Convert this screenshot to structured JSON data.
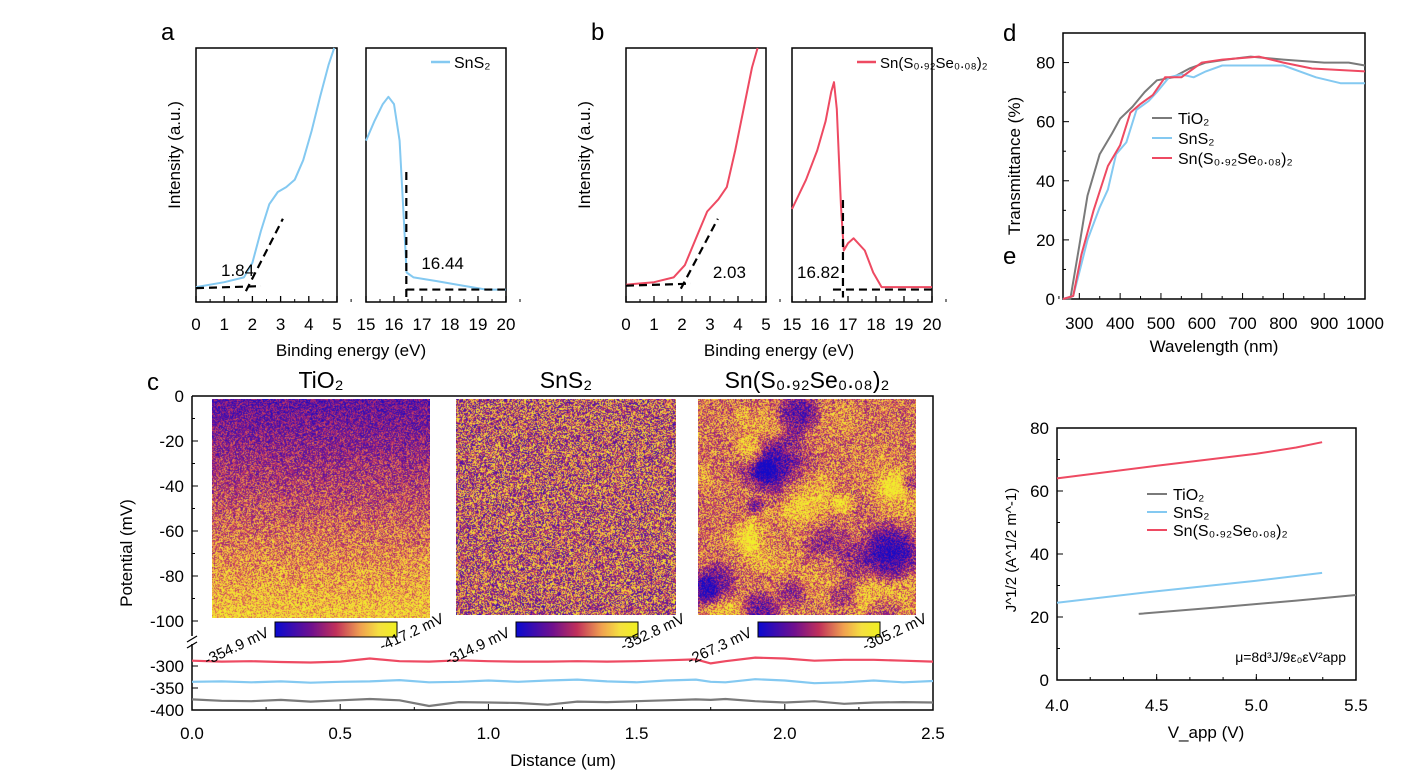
{
  "colors": {
    "TiO2": "#7a7a7a",
    "SnS2": "#84c9f1",
    "alloy": "#ee4a62",
    "dash": "#000000"
  },
  "chart_data": [
    {
      "panel": "a",
      "type": "line",
      "panel_label": "a",
      "xlabel": "Binding energy (eV)",
      "ylabel": "Intensity (a.u.)",
      "legend": "SnS₂",
      "legend_placement": "top-right",
      "left": {
        "xlim": [
          0,
          5
        ],
        "ticks": [
          "0",
          "1",
          "2",
          "3",
          "4",
          "5"
        ],
        "points": [
          [
            0,
            0.02
          ],
          [
            1,
            0.04
          ],
          [
            1.7,
            0.06
          ],
          [
            2.0,
            0.12
          ],
          [
            2.3,
            0.25
          ],
          [
            2.6,
            0.36
          ],
          [
            2.9,
            0.41
          ],
          [
            3.2,
            0.43
          ],
          [
            3.5,
            0.46
          ],
          [
            3.8,
            0.54
          ],
          [
            4.1,
            0.66
          ],
          [
            4.4,
            0.8
          ],
          [
            4.7,
            0.93
          ],
          [
            4.9,
            1.0
          ]
        ],
        "annotation": "1.84",
        "onset": 1.84
      },
      "right": {
        "xlim": [
          15,
          20
        ],
        "ticks": [
          "15",
          "16",
          "17",
          "18",
          "19",
          "20"
        ],
        "points": [
          [
            15,
            0.62
          ],
          [
            15.3,
            0.7
          ],
          [
            15.6,
            0.77
          ],
          [
            15.8,
            0.8
          ],
          [
            16.0,
            0.77
          ],
          [
            16.2,
            0.62
          ],
          [
            16.35,
            0.3
          ],
          [
            16.45,
            0.08
          ],
          [
            16.7,
            0.06
          ],
          [
            17.5,
            0.045
          ],
          [
            18.5,
            0.025
          ],
          [
            19.3,
            0.01
          ],
          [
            20,
            0.01
          ]
        ],
        "annotation": "16.44",
        "onset": 16.44
      }
    },
    {
      "panel": "b",
      "type": "line",
      "panel_label": "b",
      "xlabel": "Binding energy (eV)",
      "ylabel": "Intensity (a.u.)",
      "legend": "Sn(S₀.₉₂Se₀.₀₈)₂",
      "legend_placement": "top-right",
      "left": {
        "xlim": [
          0,
          5
        ],
        "ticks": [
          "0",
          "1",
          "2",
          "3",
          "4",
          "5"
        ],
        "points": [
          [
            0,
            0.03
          ],
          [
            1,
            0.04
          ],
          [
            1.7,
            0.06
          ],
          [
            2.1,
            0.11
          ],
          [
            2.5,
            0.22
          ],
          [
            2.9,
            0.33
          ],
          [
            3.3,
            0.38
          ],
          [
            3.6,
            0.43
          ],
          [
            3.9,
            0.58
          ],
          [
            4.2,
            0.75
          ],
          [
            4.5,
            0.92
          ],
          [
            4.7,
            1.0
          ]
        ],
        "annotation": "2.03",
        "onset": 2.03
      },
      "right": {
        "xlim": [
          15,
          20
        ],
        "ticks": [
          "15",
          "16",
          "17",
          "18",
          "19",
          "20"
        ],
        "points": [
          [
            15,
            0.34
          ],
          [
            15.5,
            0.46
          ],
          [
            15.9,
            0.58
          ],
          [
            16.2,
            0.7
          ],
          [
            16.4,
            0.82
          ],
          [
            16.5,
            0.86
          ],
          [
            16.6,
            0.75
          ],
          [
            16.75,
            0.35
          ],
          [
            16.85,
            0.17
          ],
          [
            17.0,
            0.2
          ],
          [
            17.2,
            0.22
          ],
          [
            17.6,
            0.17
          ],
          [
            17.9,
            0.08
          ],
          [
            18.2,
            0.02
          ],
          [
            20,
            0.02
          ]
        ],
        "annotation": "16.82",
        "onset": 16.82
      }
    },
    {
      "panel": "c",
      "type": "line",
      "panel_label": "c",
      "xlabel": "Distance (um)",
      "ylabel": "Potential (mV)",
      "xlim": [
        0,
        2.5
      ],
      "xticks": [
        "0.0",
        "0.5",
        "1.0",
        "1.5",
        "2.0",
        "2.5"
      ],
      "ylim_top": [
        -100,
        0
      ],
      "yticks_top": [
        "0",
        "-20",
        "-40",
        "-60",
        "-80",
        "-100"
      ],
      "ylim_bottom": [
        -400,
        -250
      ],
      "yticks_bottom": [
        "-300",
        "-350",
        "-400"
      ],
      "x": [
        0,
        0.1,
        0.2,
        0.3,
        0.4,
        0.5,
        0.6,
        0.7,
        0.8,
        0.9,
        1.0,
        1.1,
        1.2,
        1.3,
        1.4,
        1.5,
        1.6,
        1.7,
        1.75,
        1.8,
        1.9,
        2.0,
        2.1,
        2.2,
        2.3,
        2.4,
        2.5
      ],
      "series": [
        {
          "key": "alloy",
          "values": [
            -288,
            -290,
            -289,
            -291,
            -292,
            -290,
            -283,
            -289,
            -290,
            -287,
            -289,
            -290,
            -290,
            -289,
            -290,
            -289,
            -287,
            -285,
            -294,
            -289,
            -281,
            -283,
            -288,
            -286,
            -286,
            -288,
            -290
          ]
        },
        {
          "key": "SnS2",
          "values": [
            -336,
            -335,
            -337,
            -335,
            -338,
            -336,
            -335,
            -332,
            -337,
            -336,
            -333,
            -336,
            -333,
            -331,
            -335,
            -337,
            -333,
            -331,
            -336,
            -337,
            -330,
            -333,
            -339,
            -337,
            -333,
            -337,
            -334
          ]
        },
        {
          "key": "TiO2",
          "values": [
            -376,
            -379,
            -380,
            -377,
            -381,
            -378,
            -375,
            -378,
            -391,
            -382,
            -383,
            -384,
            -388,
            -381,
            -382,
            -380,
            -378,
            -376,
            -377,
            -375,
            -380,
            -383,
            -380,
            -386,
            -383,
            -382,
            -383
          ]
        }
      ],
      "maps": [
        {
          "title": "TiO₂",
          "key": "TiO2",
          "min_label": "-354.9 mV",
          "max_label": "-417.2 mV"
        },
        {
          "title": "SnS₂",
          "key": "SnS2",
          "min_label": "-314.9 mV",
          "max_label": "-352.8 mV"
        },
        {
          "title": "Sn(S₀.₉₂Se₀.₀₈)₂",
          "key": "alloy",
          "min_label": "-267.3 mV",
          "max_label": "-305.2 mV"
        }
      ]
    },
    {
      "panel": "d",
      "type": "line",
      "panel_label": "d",
      "xlabel": "Wavelength (nm)",
      "ylabel": "Transmittance (%)",
      "xlim": [
        260,
        1000
      ],
      "xticks": [
        300,
        400,
        500,
        600,
        700,
        800,
        900,
        1000
      ],
      "ylim": [
        0,
        90
      ],
      "yticks": [
        0,
        20,
        40,
        60,
        80
      ],
      "legend_placement": "center",
      "series": [
        {
          "key": "TiO2",
          "name": "TiO₂",
          "points": [
            [
              260,
              0
            ],
            [
              278,
              0
            ],
            [
              300,
              18
            ],
            [
              320,
              35
            ],
            [
              350,
              49
            ],
            [
              380,
              56
            ],
            [
              400,
              61
            ],
            [
              430,
              65
            ],
            [
              460,
              70
            ],
            [
              490,
              74
            ],
            [
              530,
              75
            ],
            [
              570,
              78
            ],
            [
              610,
              80
            ],
            [
              660,
              81
            ],
            [
              720,
              82
            ],
            [
              800,
              81
            ],
            [
              900,
              80
            ],
            [
              960,
              80
            ],
            [
              1000,
              79
            ]
          ]
        },
        {
          "key": "SnS2",
          "name": "SnS₂",
          "points": [
            [
              260,
              0
            ],
            [
              285,
              1
            ],
            [
              300,
              9
            ],
            [
              320,
              20
            ],
            [
              350,
              31
            ],
            [
              370,
              37
            ],
            [
              390,
              49
            ],
            [
              415,
              53
            ],
            [
              440,
              64
            ],
            [
              470,
              67
            ],
            [
              490,
              70
            ],
            [
              520,
              75
            ],
            [
              550,
              76
            ],
            [
              580,
              75
            ],
            [
              610,
              77
            ],
            [
              650,
              79
            ],
            [
              800,
              79
            ],
            [
              880,
              75
            ],
            [
              940,
              73
            ],
            [
              1000,
              73
            ]
          ]
        },
        {
          "key": "alloy",
          "name": "Sn(S₀.₉₂Se₀.₀₈)₂",
          "points": [
            [
              260,
              0
            ],
            [
              285,
              1
            ],
            [
              305,
              15
            ],
            [
              335,
              30
            ],
            [
              370,
              45
            ],
            [
              400,
              52
            ],
            [
              425,
              63
            ],
            [
              450,
              66
            ],
            [
              480,
              69
            ],
            [
              510,
              75
            ],
            [
              550,
              75
            ],
            [
              600,
              80
            ],
            [
              650,
              81
            ],
            [
              740,
              82
            ],
            [
              800,
              80
            ],
            [
              870,
              78
            ],
            [
              1000,
              77
            ]
          ]
        }
      ]
    },
    {
      "panel": "e",
      "type": "line",
      "panel_label": "e",
      "xlabel": "V_app (V)",
      "ylabel": "J^1/2 (A^1/2 m^-1)",
      "xlim": [
        4.0,
        5.5
      ],
      "xticks": [
        "4.0",
        "4.5",
        "5.0",
        "5.5"
      ],
      "ylim": [
        0,
        80
      ],
      "yticks": [
        0,
        20,
        40,
        60,
        80
      ],
      "legend_placement": "center",
      "annotation": "μ=8d³J/9ε₀εV²app",
      "series": [
        {
          "key": "TiO2",
          "name": "TiO₂",
          "points": [
            [
              4.41,
              21
            ],
            [
              4.8,
              23
            ],
            [
              5.2,
              25.2
            ],
            [
              5.5,
              27
            ]
          ]
        },
        {
          "key": "SnS2",
          "name": "SnS₂",
          "points": [
            [
              4.0,
              24.5
            ],
            [
              4.5,
              28.2
            ],
            [
              5.0,
              31.5
            ],
            [
              5.33,
              34
            ]
          ]
        },
        {
          "key": "alloy",
          "name": "Sn(S₀.₉₂Se₀.₀₈)₂",
          "points": [
            [
              4.0,
              64
            ],
            [
              4.5,
              68
            ],
            [
              5.0,
              71.8
            ],
            [
              5.2,
              73.8
            ],
            [
              5.33,
              75.5
            ]
          ]
        }
      ]
    }
  ]
}
